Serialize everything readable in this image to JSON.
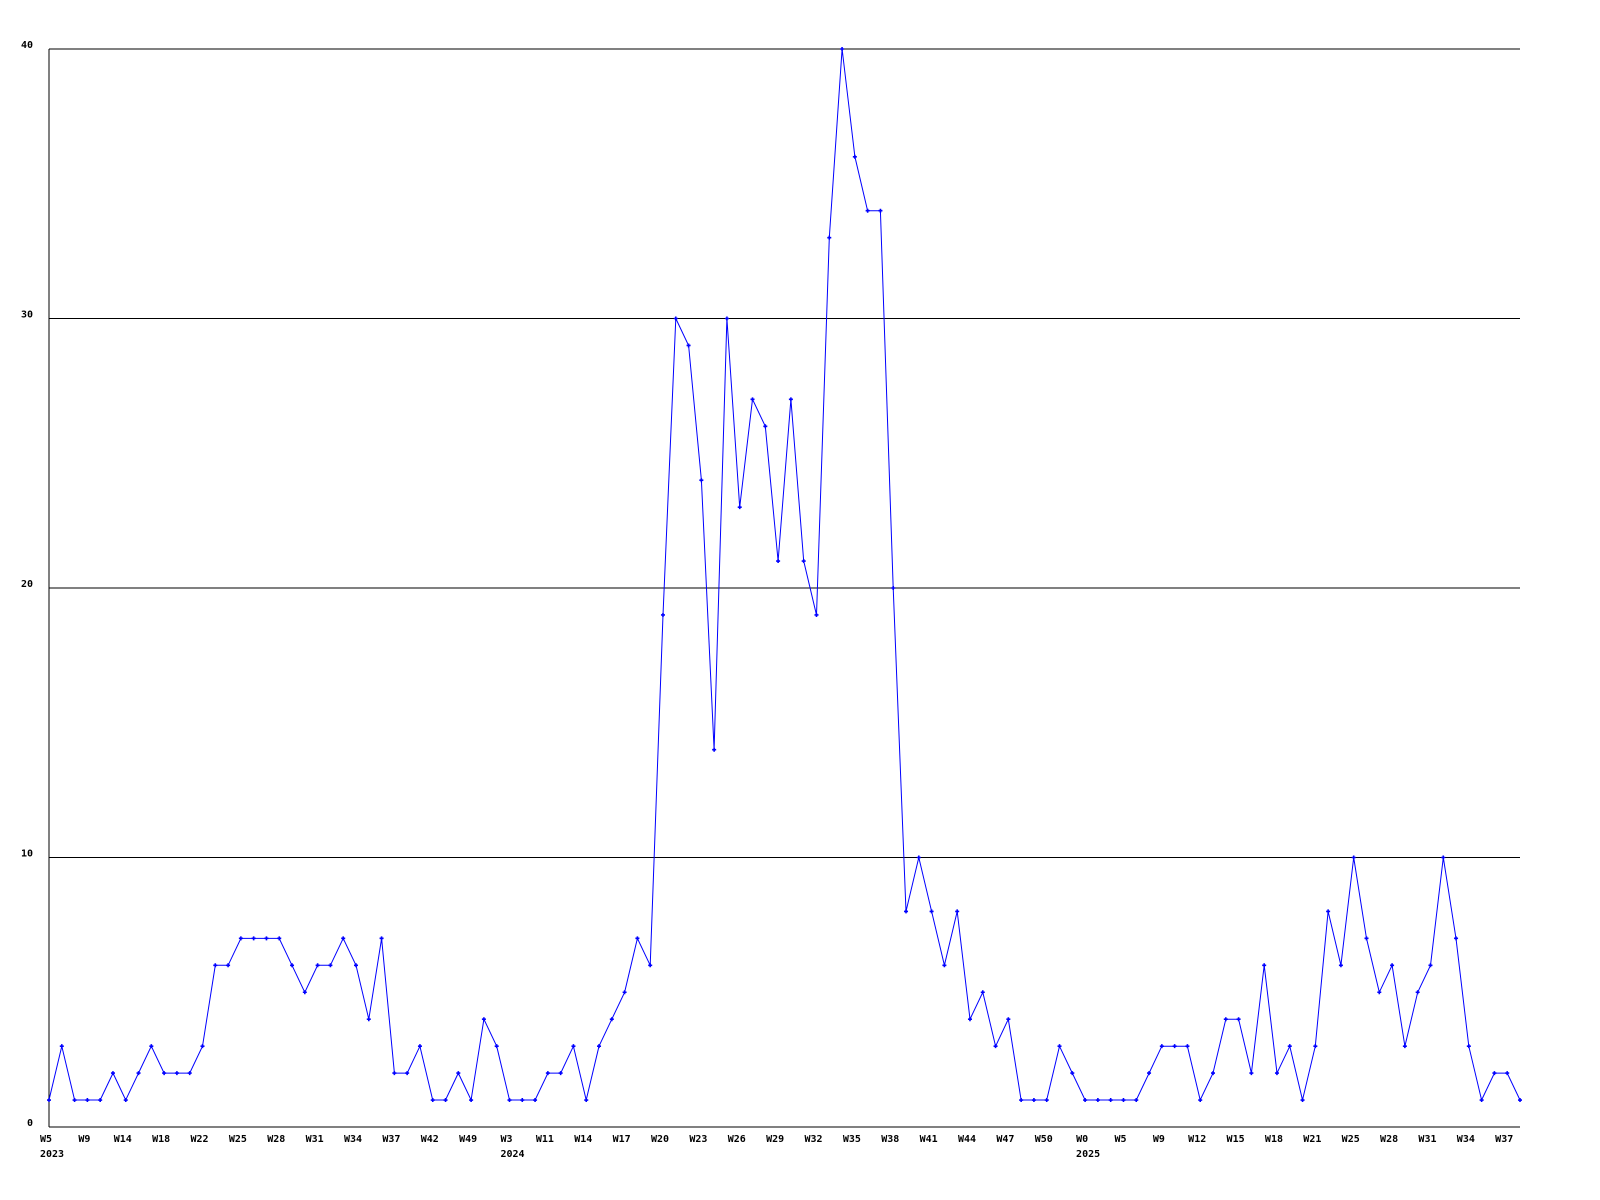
{
  "chart_data": {
    "type": "line",
    "title": "",
    "xlabel": "",
    "ylabel": "",
    "ylim": [
      0,
      40
    ],
    "yticks": [
      0,
      10,
      20,
      30,
      40
    ],
    "grid": "horizontal",
    "line_color": "#0000ff",
    "values": [
      1,
      3,
      1,
      1,
      1,
      2,
      1,
      2,
      3,
      2,
      2,
      2,
      3,
      6,
      6,
      7,
      7,
      7,
      7,
      6,
      5,
      6,
      6,
      7,
      6,
      4,
      7,
      2,
      2,
      3,
      1,
      1,
      2,
      1,
      4,
      3,
      1,
      1,
      1,
      2,
      2,
      3,
      1,
      3,
      4,
      5,
      7,
      6,
      19,
      30,
      29,
      24,
      14,
      30,
      23,
      27,
      26,
      21,
      27,
      21,
      19,
      33,
      40,
      36,
      34,
      34,
      20,
      8,
      10,
      8,
      6,
      8,
      4,
      5,
      3,
      4,
      1,
      1,
      1,
      3,
      2,
      1,
      1,
      1,
      1,
      1,
      2,
      3,
      3,
      3,
      1,
      2,
      4,
      4,
      2,
      6,
      2,
      3,
      1,
      3,
      8,
      6,
      10,
      7,
      5,
      6,
      3,
      5,
      6,
      10,
      7,
      3,
      1,
      2,
      2,
      1
    ],
    "xtick_labels": [
      {
        "index": 0,
        "label": "W5"
      },
      {
        "index": 3,
        "label": "W9"
      },
      {
        "index": 6,
        "label": "W14"
      },
      {
        "index": 9,
        "label": "W18"
      },
      {
        "index": 12,
        "label": "W22"
      },
      {
        "index": 15,
        "label": "W25"
      },
      {
        "index": 18,
        "label": "W28"
      },
      {
        "index": 21,
        "label": "W31"
      },
      {
        "index": 24,
        "label": "W34"
      },
      {
        "index": 27,
        "label": "W37"
      },
      {
        "index": 30,
        "label": "W42"
      },
      {
        "index": 33,
        "label": "W49"
      },
      {
        "index": 36,
        "label": "W3"
      },
      {
        "index": 39,
        "label": "W11"
      },
      {
        "index": 42,
        "label": "W14"
      },
      {
        "index": 45,
        "label": "W17"
      },
      {
        "index": 48,
        "label": "W20"
      },
      {
        "index": 51,
        "label": "W23"
      },
      {
        "index": 54,
        "label": "W26"
      },
      {
        "index": 57,
        "label": "W29"
      },
      {
        "index": 60,
        "label": "W32"
      },
      {
        "index": 63,
        "label": "W35"
      },
      {
        "index": 66,
        "label": "W38"
      },
      {
        "index": 69,
        "label": "W41"
      },
      {
        "index": 72,
        "label": "W44"
      },
      {
        "index": 75,
        "label": "W47"
      },
      {
        "index": 78,
        "label": "W50"
      },
      {
        "index": 81,
        "label": "W0"
      },
      {
        "index": 84,
        "label": "W5"
      },
      {
        "index": 87,
        "label": "W9"
      },
      {
        "index": 90,
        "label": "W12"
      },
      {
        "index": 93,
        "label": "W15"
      },
      {
        "index": 96,
        "label": "W18"
      },
      {
        "index": 99,
        "label": "W21"
      },
      {
        "index": 102,
        "label": "W25"
      },
      {
        "index": 105,
        "label": "W28"
      },
      {
        "index": 108,
        "label": "W31"
      },
      {
        "index": 111,
        "label": "W34"
      },
      {
        "index": 114,
        "label": "W37"
      }
    ],
    "year_labels": [
      {
        "index": 0,
        "label": "2023"
      },
      {
        "index": 36,
        "label": "2024"
      },
      {
        "index": 81,
        "label": "2025"
      }
    ]
  }
}
